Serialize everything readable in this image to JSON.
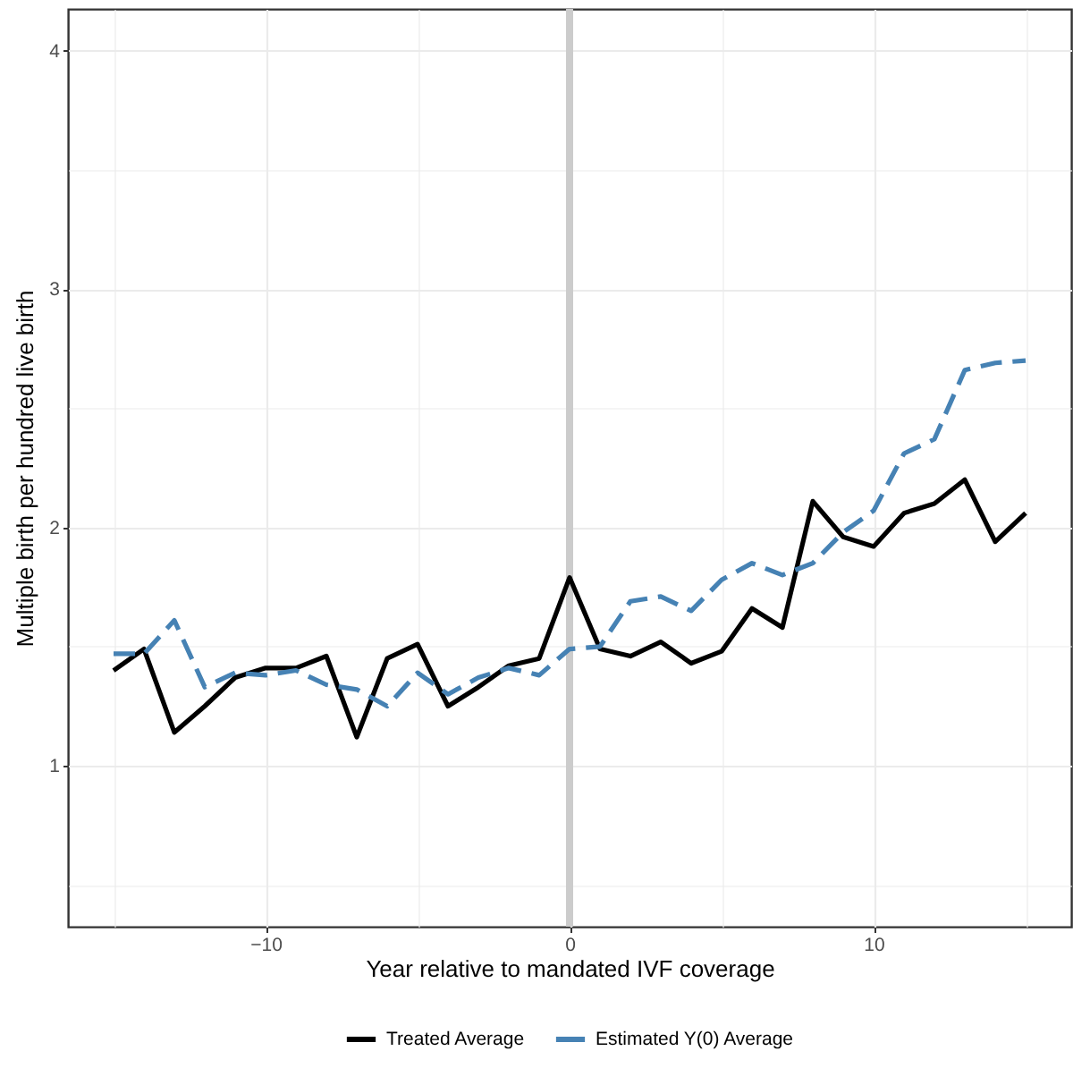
{
  "chart_data": {
    "type": "line",
    "xlabel": "Year relative to mandated IVF coverage",
    "ylabel": "Multiple birth per hundred live birth",
    "x": [
      -15,
      -14,
      -13,
      -12,
      -11,
      -10,
      -9,
      -8,
      -7,
      -6,
      -5,
      -4,
      -3,
      -2,
      -1,
      0,
      1,
      2,
      3,
      4,
      5,
      6,
      7,
      8,
      9,
      10,
      11,
      12,
      13,
      14,
      15
    ],
    "series": [
      {
        "name": "Treated Average",
        "color": "#000000",
        "line_style": "solid",
        "values": [
          1.4,
          1.49,
          1.14,
          1.25,
          1.37,
          1.41,
          1.41,
          1.46,
          1.12,
          1.45,
          1.51,
          1.25,
          1.33,
          1.42,
          1.45,
          1.79,
          1.49,
          1.46,
          1.52,
          1.43,
          1.48,
          1.66,
          1.58,
          2.11,
          1.96,
          1.92,
          2.06,
          2.1,
          2.2,
          1.94,
          2.06
        ]
      },
      {
        "name": "Estimated Y(0) Average",
        "color": "#4682b4",
        "line_style": "dashed",
        "values": [
          1.47,
          1.47,
          1.61,
          1.33,
          1.39,
          1.38,
          1.4,
          1.34,
          1.32,
          1.25,
          1.39,
          1.3,
          1.37,
          1.41,
          1.38,
          1.49,
          1.5,
          1.69,
          1.71,
          1.65,
          1.78,
          1.85,
          1.8,
          1.85,
          1.98,
          2.07,
          2.31,
          2.37,
          2.66,
          2.69,
          2.7
        ]
      }
    ],
    "xlim": [
      -16.5,
      16.5
    ],
    "xticks": [
      {
        "value": -15,
        "label": null
      },
      {
        "value": -10,
        "label": "−10"
      },
      {
        "value": -5,
        "label": null
      },
      0,
      {
        "value": 5,
        "label": null
      },
      10,
      {
        "value": 15,
        "label": null
      }
    ],
    "ylim": [
      0.325,
      4.175
    ],
    "yticks": [
      {
        "value": 0.5,
        "label": null
      },
      1,
      {
        "value": 1.5,
        "label": null
      },
      2,
      {
        "value": 2.5,
        "label": null
      },
      3,
      {
        "value": 3.5,
        "label": null
      },
      4
    ],
    "ref_lines": [
      {
        "axis": "x",
        "value": 0,
        "color": "#cccccc"
      }
    ],
    "grid": true,
    "legend": "bottom"
  }
}
